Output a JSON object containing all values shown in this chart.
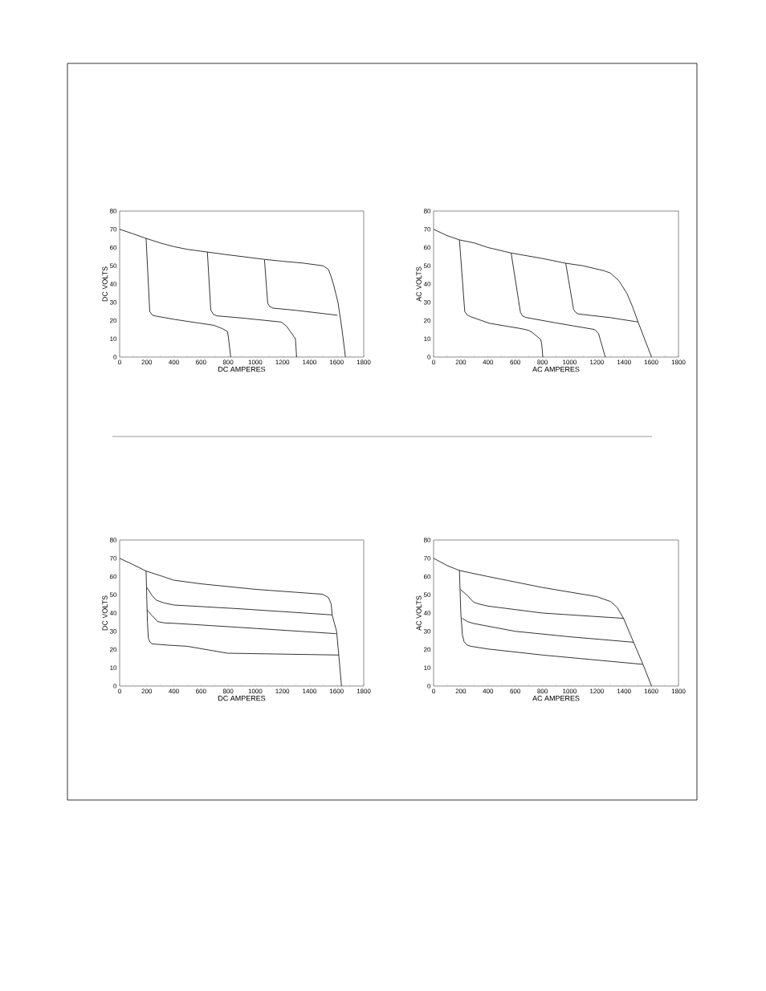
{
  "chart_data": [
    {
      "type": "line",
      "xlabel": "DC AMPERES",
      "ylabel": "DC VOLTS",
      "xlim": [
        0,
        1800
      ],
      "ylim": [
        0,
        80
      ],
      "xticks": [
        0,
        {
          "value": 100,
          "label": null
        },
        200,
        {
          "value": 300,
          "label": null
        },
        400,
        {
          "value": 500,
          "label": null
        },
        600,
        {
          "value": 700,
          "label": null
        },
        800,
        {
          "value": 900,
          "label": null
        },
        1000,
        {
          "value": 1100,
          "label": null
        },
        1200,
        {
          "value": 1300,
          "label": null
        },
        1400,
        {
          "value": 1500,
          "label": null
        },
        1600,
        {
          "value": 1700,
          "label": null
        },
        1800
      ],
      "yticks": [
        0,
        10,
        20,
        30,
        40,
        50,
        60,
        70,
        80
      ],
      "series": [
        {
          "color": "#000000",
          "x": [
            0,
            100,
            195,
            300,
            400,
            500,
            650,
            800,
            1070,
            1200,
            1350,
            1500,
            1540,
            1560,
            1580,
            1610,
            1640,
            1665
          ],
          "values": [
            70,
            67.5,
            65,
            62.5,
            60.5,
            59,
            57.5,
            56,
            53.5,
            52.5,
            51.5,
            50,
            48,
            44,
            39,
            30,
            15,
            0
          ]
        },
        {
          "color": "#000000",
          "x": [
            195,
            222,
            240,
            270,
            400,
            550,
            696,
            760,
            795,
            801,
            819
          ],
          "values": [
            65,
            25,
            23,
            22.4,
            20.7,
            19,
            17.4,
            15.5,
            14,
            11.4,
            0
          ]
        },
        {
          "color": "#000000",
          "x": [
            647,
            672,
            690,
            716,
            900,
            1191,
            1230,
            1296,
            1300,
            1305
          ],
          "values": [
            57.6,
            25.8,
            23.5,
            22.6,
            21.4,
            19.2,
            17,
            10.1,
            6,
            0
          ]
        },
        {
          "color": "#000000",
          "x": [
            1068,
            1092,
            1105,
            1131,
            1300,
            1606
          ],
          "values": [
            53.3,
            29.5,
            27.8,
            26.8,
            25.6,
            22.9
          ]
        }
      ]
    },
    {
      "type": "line",
      "xlabel": "AC AMPERES",
      "ylabel": "AC VOLTS",
      "xlim": [
        0,
        1800
      ],
      "ylim": [
        0,
        80
      ],
      "xticks": [
        0,
        {
          "value": 100,
          "label": null
        },
        200,
        {
          "value": 300,
          "label": null
        },
        400,
        {
          "value": 500,
          "label": null
        },
        600,
        {
          "value": 700,
          "label": null
        },
        800,
        {
          "value": 900,
          "label": null
        },
        1000,
        {
          "value": 1100,
          "label": null
        },
        1200,
        {
          "value": 1300,
          "label": null
        },
        1400,
        {
          "value": 1500,
          "label": null
        },
        1600,
        {
          "value": 1700,
          "label": null
        },
        1800
      ],
      "yticks": [
        0,
        10,
        20,
        30,
        40,
        50,
        60,
        70,
        80
      ],
      "series": [
        {
          "color": "#000000",
          "x": [
            0,
            100,
            190,
            300,
            400,
            570,
            800,
            971,
            1100,
            1252,
            1300,
            1360,
            1420,
            1460,
            1503,
            1602
          ],
          "values": [
            70,
            66.5,
            64.2,
            62.5,
            60,
            57,
            54,
            51.4,
            50,
            47.3,
            46,
            42,
            35,
            28,
            19.2,
            0
          ]
        },
        {
          "color": "#000000",
          "x": [
            190,
            229,
            245,
            273,
            411,
            649,
            700,
            728,
            787,
            795,
            803
          ],
          "values": [
            64.2,
            25,
            23.2,
            22.1,
            18.5,
            15.5,
            14.6,
            13.3,
            9.7,
            7,
            0
          ]
        },
        {
          "color": "#000000",
          "x": [
            570,
            639,
            655,
            678,
            900,
            1183,
            1212,
            1262
          ],
          "values": [
            57,
            24.3,
            22.5,
            21.7,
            18.7,
            15.1,
            13,
            0
          ]
        },
        {
          "color": "#000000",
          "x": [
            971,
            1029,
            1045,
            1064,
            1300,
            1503
          ],
          "values": [
            51.4,
            26.1,
            24.4,
            23.6,
            21.6,
            19.2
          ]
        }
      ]
    },
    {
      "type": "line",
      "xlabel": "DC AMPERES",
      "ylabel": "DC VOLTS",
      "xlim": [
        0,
        1800
      ],
      "ylim": [
        0,
        80
      ],
      "xticks": [
        0,
        {
          "value": 100,
          "label": null
        },
        200,
        {
          "value": 300,
          "label": null
        },
        400,
        {
          "value": 500,
          "label": null
        },
        600,
        {
          "value": 700,
          "label": null
        },
        800,
        {
          "value": 900,
          "label": null
        },
        1000,
        {
          "value": 1100,
          "label": null
        },
        1200,
        {
          "value": 1300,
          "label": null
        },
        1400,
        {
          "value": 1500,
          "label": null
        },
        1600,
        {
          "value": 1700,
          "label": null
        },
        1800
      ],
      "yticks": [
        0,
        10,
        20,
        30,
        40,
        50,
        60,
        70,
        80
      ],
      "series": [
        {
          "color": "#000000",
          "x": [
            0,
            100,
            195,
            300,
            400,
            600,
            1000,
            1497,
            1540,
            1560,
            1567,
            1600,
            1616,
            1636
          ],
          "values": [
            70,
            66.5,
            63,
            60.5,
            58,
            56,
            53,
            50.3,
            48.5,
            45,
            39,
            30,
            17,
            0
          ]
        },
        {
          "color": "#000000",
          "x": [
            195,
            205,
            212,
            225,
            241,
            360,
            498,
            795,
            1616
          ],
          "values": [
            63,
            35,
            26,
            24,
            23.1,
            22.4,
            21.8,
            18,
            17
          ]
        },
        {
          "color": "#000000",
          "x": [
            202,
            240,
            271,
            330,
            400,
            894,
            1567
          ],
          "values": [
            53.9,
            49.5,
            47,
            45.5,
            44.4,
            42.3,
            39
          ]
        },
        {
          "color": "#000000",
          "x": [
            202,
            240,
            281,
            330,
            419,
            894,
            1596
          ],
          "values": [
            41.6,
            38.5,
            35.3,
            34.6,
            34.3,
            32.1,
            28.7
          ]
        }
      ]
    },
    {
      "type": "line",
      "xlabel": "AC AMPERES",
      "ylabel": "AC VOLTS",
      "xlim": [
        0,
        1800
      ],
      "ylim": [
        0,
        80
      ],
      "xticks": [
        0,
        {
          "value": 100,
          "label": null
        },
        200,
        {
          "value": 300,
          "label": null
        },
        400,
        {
          "value": 500,
          "label": null
        },
        600,
        {
          "value": 700,
          "label": null
        },
        800,
        {
          "value": 900,
          "label": null
        },
        1000,
        {
          "value": 1100,
          "label": null
        },
        1200,
        {
          "value": 1300,
          "label": null
        },
        1400,
        {
          "value": 1500,
          "label": null
        },
        1600,
        {
          "value": 1700,
          "label": null
        },
        1800
      ],
      "yticks": [
        0,
        10,
        20,
        30,
        40,
        50,
        60,
        70,
        80
      ],
      "series": [
        {
          "color": "#000000",
          "x": [
            0,
            100,
            190,
            400,
            600,
            800,
            1000,
            1200,
            1301,
            1350,
            1396,
            1470,
            1539,
            1602
          ],
          "values": [
            70,
            66,
            63.3,
            60,
            57,
            54,
            51.5,
            49,
            46.3,
            43,
            37.1,
            24,
            11.9,
            0
          ]
        },
        {
          "color": "#000000",
          "x": [
            190,
            200,
            212,
            224,
            245,
            273,
            400,
            800,
            1539
          ],
          "values": [
            63.3,
            40,
            28,
            24.3,
            22.5,
            21.8,
            20.3,
            17,
            11.9
          ]
        },
        {
          "color": "#000000",
          "x": [
            198,
            250,
            293,
            330,
            401,
            800,
            1396
          ],
          "values": [
            52.9,
            49.5,
            46,
            45,
            43.8,
            40,
            37.1
          ]
        },
        {
          "color": "#000000",
          "x": [
            210,
            250,
            293,
            400,
            600,
            1000,
            1470
          ],
          "values": [
            37.1,
            35.3,
            34.3,
            32.8,
            30,
            27,
            24
          ]
        }
      ]
    }
  ]
}
